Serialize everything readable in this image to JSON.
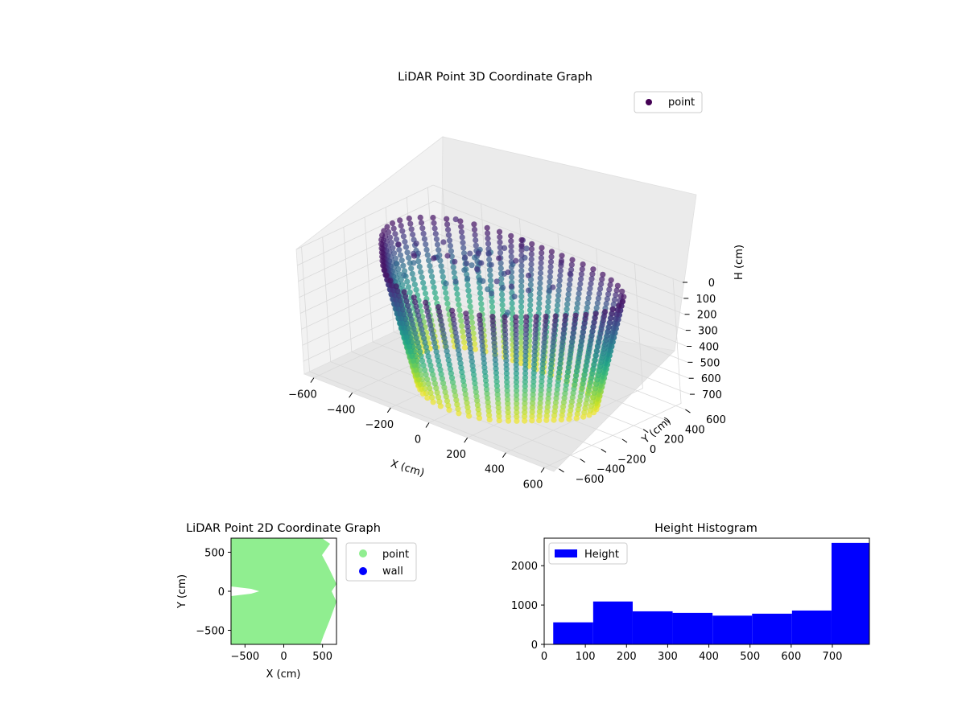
{
  "colors": {
    "viridis_dark": "#440154",
    "viridis_blue": "#31688e",
    "viridis_teal": "#21918c",
    "viridis_green": "#5ec962",
    "viridis_yellow": "#fde725",
    "point_2d": "#90ee90",
    "wall_2d": "#0000ff",
    "histogram_bar": "#0000ff",
    "pane": "#f2f2f2",
    "grid": "#d9d9d9"
  },
  "chart_data": [
    {
      "type": "scatter",
      "projection": "3d",
      "title": "LiDAR Point 3D Coordinate Graph",
      "xlabel": "X (cm)",
      "ylabel": "Y (cm)",
      "zlabel": "H (cm)",
      "xlim": [
        -650,
        650
      ],
      "ylim": [
        -650,
        650
      ],
      "zlim": [
        780,
        0
      ],
      "x_ticks": [
        "−600",
        "−400",
        "−200",
        "0",
        "200",
        "400",
        "600"
      ],
      "y_ticks": [
        "−600",
        "−400",
        "−200",
        "0",
        "200",
        "400",
        "600"
      ],
      "z_ticks": [
        "0",
        "100",
        "200",
        "300",
        "400",
        "500",
        "600",
        "700"
      ],
      "legend": [
        {
          "label": "point",
          "color": "#440154",
          "marker": "circle"
        }
      ],
      "legend_position": "top-right",
      "colormap": "viridis",
      "grid": true
    },
    {
      "type": "scatter",
      "title": "LiDAR Point 2D Coordinate Graph",
      "xlabel": "X (cm)",
      "ylabel": "Y (cm)",
      "xlim": [
        -680,
        680
      ],
      "ylim": [
        -680,
        680
      ],
      "x_ticks": [
        "−500",
        "0",
        "500"
      ],
      "y_ticks": [
        "500",
        "0",
        "−500"
      ],
      "legend": [
        {
          "label": "point",
          "color": "#90ee90",
          "marker": "circle"
        },
        {
          "label": "wall",
          "color": "#0000ff",
          "marker": "circle"
        }
      ],
      "legend_position": "outside-right",
      "grid": false
    },
    {
      "type": "histogram",
      "title": "Height Histogram",
      "xlabel": "",
      "ylabel": "",
      "xlim": [
        0,
        790
      ],
      "ylim": [
        0,
        2700
      ],
      "x_ticks": [
        "0",
        "100",
        "200",
        "300",
        "400",
        "500",
        "600",
        "700"
      ],
      "y_ticks": [
        "0",
        "1000",
        "2000"
      ],
      "bins": [
        {
          "from": 22,
          "to": 119,
          "count": 560
        },
        {
          "from": 119,
          "to": 215,
          "count": 1090
        },
        {
          "from": 215,
          "to": 312,
          "count": 840
        },
        {
          "from": 312,
          "to": 409,
          "count": 800
        },
        {
          "from": 409,
          "to": 505,
          "count": 730
        },
        {
          "from": 505,
          "to": 602,
          "count": 780
        },
        {
          "from": 602,
          "to": 698,
          "count": 860
        },
        {
          "from": 698,
          "to": 795,
          "count": 2580
        }
      ],
      "legend": [
        {
          "label": "Height",
          "color": "#0000ff"
        }
      ],
      "legend_position": "top-left",
      "grid": false
    }
  ]
}
